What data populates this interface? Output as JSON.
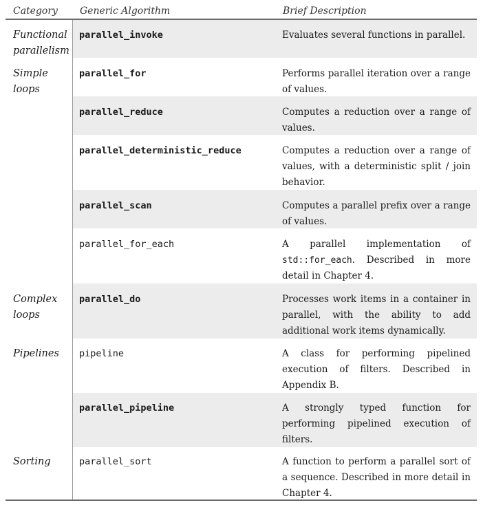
{
  "header": {
    "category": "Category",
    "algorithm": "Generic Algorithm",
    "description": "Brief Description"
  },
  "rows": [
    {
      "category": [
        "Functional",
        "parallelism"
      ],
      "algorithm": "parallel_invoke",
      "bold": true,
      "shaded": true,
      "description": "Evaluates several functions in parallel."
    },
    {
      "category": [
        "Simple",
        "loops"
      ],
      "algorithm": "parallel_for",
      "bold": true,
      "shaded": false,
      "description": "Performs parallel iteration over a range of values."
    },
    {
      "category": [],
      "algorithm": "parallel_reduce",
      "bold": true,
      "shaded": true,
      "description": "Computes a reduction over a range of values."
    },
    {
      "category": [],
      "algorithm": "parallel_deterministic_reduce",
      "bold": true,
      "shaded": false,
      "description": "Computes a reduction over a range of values, with a deterministic split / join behavior."
    },
    {
      "category": [],
      "algorithm": "parallel_scan",
      "bold": true,
      "shaded": true,
      "description": "Computes a parallel prefix over a range of values."
    },
    {
      "category": [],
      "algorithm": "parallel_for_each",
      "bold": false,
      "shaded": false,
      "description_pre": "A parallel implementation of ",
      "description_code": "std::for_each",
      "description_post": ". Described in more detail in Chapter 4."
    },
    {
      "category": [
        "Complex",
        "loops"
      ],
      "algorithm": "parallel_do",
      "bold": true,
      "shaded": true,
      "description": "Processes work items in a container in parallel, with the ability to add additional work items dynamically."
    },
    {
      "category": [
        "Pipelines"
      ],
      "algorithm": "pipeline",
      "bold": false,
      "shaded": false,
      "description": "A class for performing pipelined execution of filters. Described in Appendix B."
    },
    {
      "category": [],
      "algorithm": "parallel_pipeline",
      "bold": true,
      "shaded": true,
      "description": "A strongly typed function for performing pipelined execution of filters."
    },
    {
      "category": [
        "Sorting"
      ],
      "algorithm": "parallel_sort",
      "bold": false,
      "shaded": false,
      "description": "A function to perform a parallel sort of a sequence. Described in more detail in Chapter 4."
    }
  ]
}
